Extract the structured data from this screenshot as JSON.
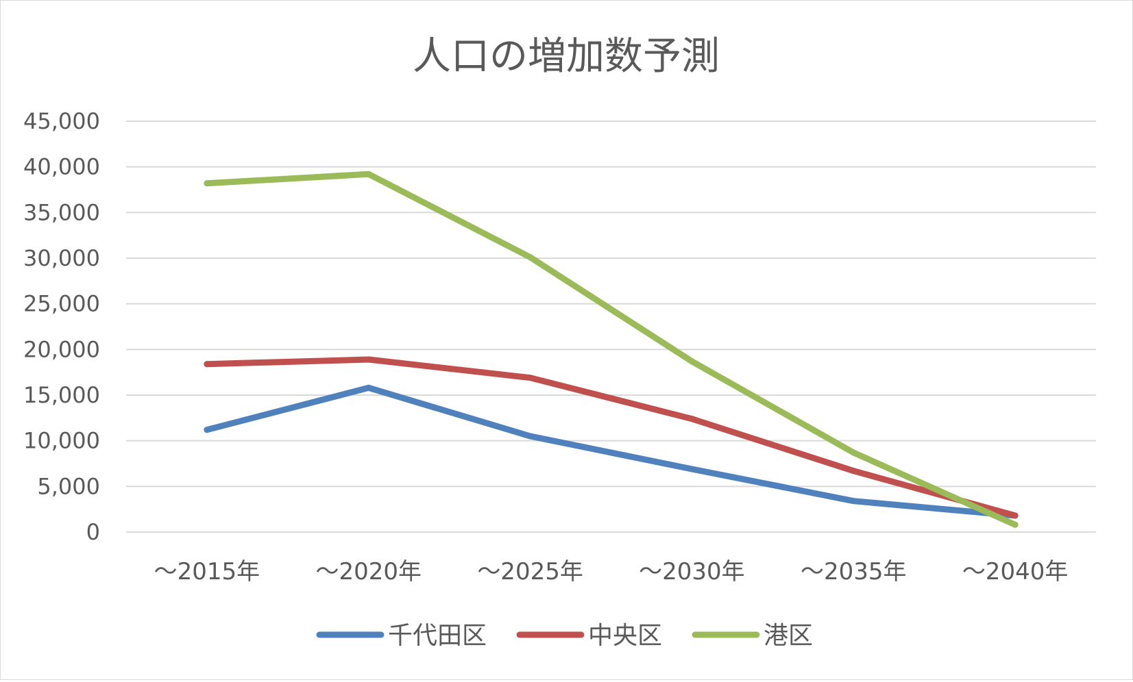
{
  "chart_data": {
    "type": "line",
    "title": "人口の増加数予測",
    "xlabel": "",
    "ylabel": "",
    "categories": [
      "～2015年",
      "～2020年",
      "～2025年",
      "～2030年",
      "～2035年",
      "～2040年"
    ],
    "ylim": [
      0,
      45000
    ],
    "yticks": [
      0,
      5000,
      10000,
      15000,
      20000,
      25000,
      30000,
      35000,
      40000,
      45000
    ],
    "ytick_labels": [
      "0",
      "5,000",
      "10,000",
      "15,000",
      "20,000",
      "25,000",
      "30,000",
      "35,000",
      "40,000",
      "45,000"
    ],
    "grid": true,
    "legend_position": "bottom",
    "series": [
      {
        "name": "千代田区",
        "color": "#4f81bd",
        "values": [
          11200,
          15800,
          10500,
          6900,
          3400,
          1800
        ]
      },
      {
        "name": "中央区",
        "color": "#c0504d",
        "values": [
          18400,
          18900,
          16900,
          12400,
          6700,
          1800
        ]
      },
      {
        "name": "港区",
        "color": "#9bbb59",
        "values": [
          38200,
          39200,
          30100,
          18700,
          8700,
          800
        ]
      }
    ]
  }
}
